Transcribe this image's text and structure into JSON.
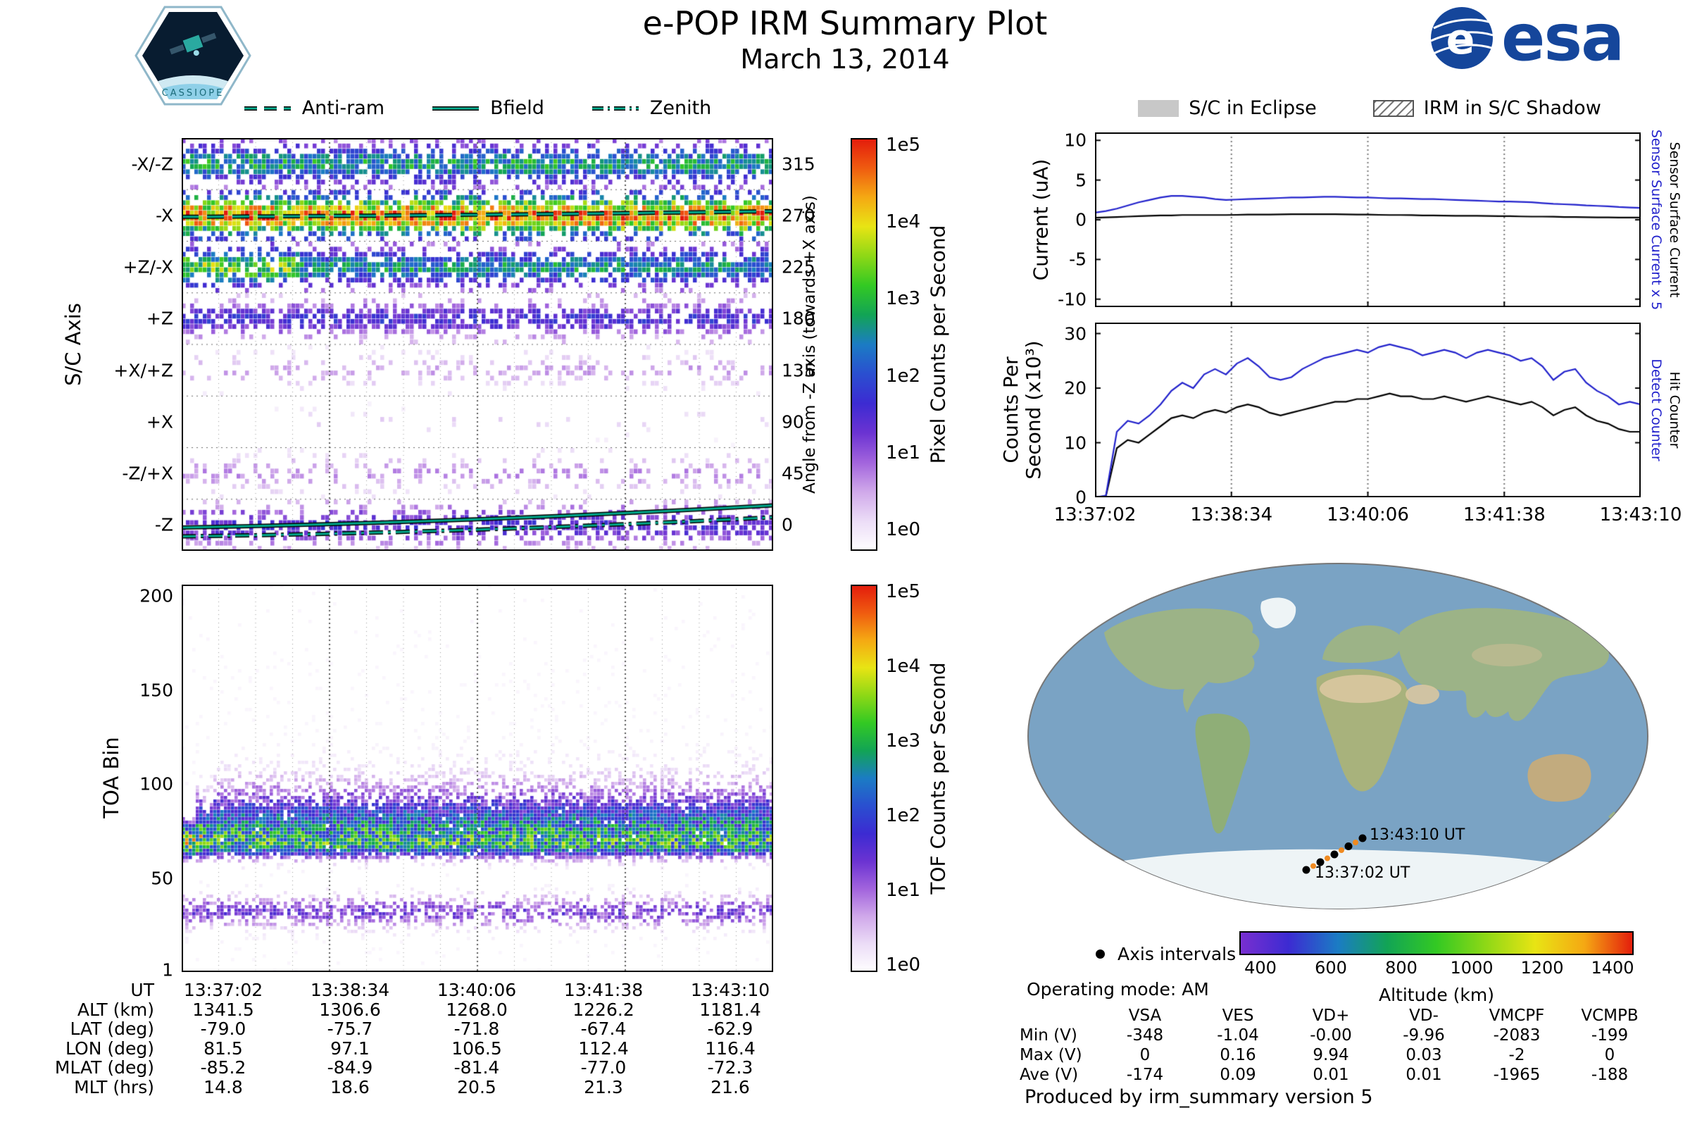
{
  "header": {
    "title": "e-POP IRM Summary Plot",
    "date": "March 13, 2014",
    "esa_text": "esa",
    "cassiope_text": "CASSIOPE"
  },
  "colors": {
    "accent_teal": "#00a98c",
    "series_blue": "#2222cc",
    "series_black": "#000000",
    "eclipse_gray": "#c8c8c8",
    "ocean": "#7aa3c4",
    "land": "#9cb387",
    "desert": "#d9c7a0",
    "ice": "#eef4f6",
    "track_orange": "#f08a20"
  },
  "spectral_colormap": [
    "#ffffff",
    "#ecddf7",
    "#d0a9ea",
    "#a264dd",
    "#6b33d2",
    "#3c2bd2",
    "#2a4fd0",
    "#1b7cc4",
    "#12a455",
    "#33c923",
    "#8ed816",
    "#e8e414",
    "#f5a813",
    "#ef5a10",
    "#e31a0c"
  ],
  "altitude_colormap": [
    "#7a2fd0",
    "#3c2bd2",
    "#1b7cc4",
    "#12a455",
    "#33c923",
    "#8ed816",
    "#e8e414",
    "#f5a813",
    "#e31a0c"
  ],
  "left_legend": {
    "items": [
      {
        "label": "Anti-ram",
        "style": "dashed"
      },
      {
        "label": "Bfield",
        "style": "solid"
      },
      {
        "label": "Zenith",
        "style": "dashdot"
      }
    ]
  },
  "right_legend": {
    "eclipse": "S/C in Eclipse",
    "shadow": "IRM in S/C Shadow"
  },
  "time_axis": {
    "ticks": [
      "13:37:02",
      "13:38:34",
      "13:40:06",
      "13:41:38",
      "13:43:10"
    ]
  },
  "chart_data": [
    {
      "id": "axis_spectrogram",
      "type": "heatmap",
      "ylabel": "S/C Axis",
      "y_categories": [
        "-X/-Z",
        "-X",
        "+Z/-X",
        "+Z",
        "+X/+Z",
        "+X",
        "-Z/+X",
        "-Z"
      ],
      "right_axis_label": "Angle from -Z axis (towards +X axis)",
      "right_ticks": [
        "315",
        "270",
        "225",
        "180",
        "135",
        "90",
        "45",
        "0"
      ],
      "colorbar_label": "Pixel Counts per Second",
      "colorbar_ticks": [
        "1e5",
        "1e4",
        "1e3",
        "1e2",
        "1e1",
        "1e0"
      ],
      "x_ticks": [
        "13:37:02",
        "13:38:34",
        "13:40:06",
        "13:41:38",
        "13:43:10"
      ],
      "bands": [
        {
          "name": "-X/-Z",
          "density": 0.85,
          "peak": 0.52,
          "spread": 0.75
        },
        {
          "name": "-X",
          "density": 1.0,
          "peak": 0.82,
          "spread": 0.85
        },
        {
          "name": "+Z/-X",
          "density": 0.85,
          "peak": 0.5,
          "spread": 0.7,
          "early_boost": 0.14
        },
        {
          "name": "+Z",
          "density": 0.7,
          "peak": 0.33,
          "spread": 0.55
        },
        {
          "name": "+X/+Z",
          "density": 0.25,
          "peak": 0.14,
          "spread": 0.5
        },
        {
          "name": "+X",
          "density": 0.05,
          "peak": 0.08,
          "spread": 0.4
        },
        {
          "name": "-Z/+X",
          "density": 0.3,
          "peak": 0.16,
          "spread": 0.55
        },
        {
          "name": "-Z",
          "density": 0.55,
          "peak": 0.3,
          "spread": 0.8
        }
      ],
      "overlays": [
        {
          "name": "Anti-ram",
          "band": "-X",
          "style": "dashed"
        },
        {
          "name": "Bfield",
          "band": "-Z",
          "style": "solid"
        },
        {
          "name": "Zenith",
          "band": "-Z",
          "style": "dashdot"
        }
      ]
    },
    {
      "id": "toa_spectrogram",
      "type": "heatmap",
      "ylabel": "TOA Bin",
      "y_ticks": [
        200,
        150,
        100,
        50,
        1
      ],
      "ylim": [
        0,
        206
      ],
      "colorbar_label": "TOF Counts per Second",
      "colorbar_ticks": [
        "1e5",
        "1e4",
        "1e3",
        "1e2",
        "1e1",
        "1e0"
      ],
      "x_ticks": [
        "13:37:02",
        "13:38:34",
        "13:40:06",
        "13:41:38",
        "13:43:10"
      ],
      "main_band": {
        "center": 68,
        "spread_down": 7,
        "spread_up": 26,
        "peak": 0.6
      },
      "secondary_band": {
        "center": 32,
        "spread": 8,
        "peak": 0.26
      }
    },
    {
      "id": "current_plot",
      "type": "line",
      "ylabel": "Current (uA)",
      "y_ticks": [
        10,
        5,
        0,
        -5,
        -10
      ],
      "ylim": [
        -11,
        11
      ],
      "right_labels": [
        {
          "text": "Sensor Surface Current x 5",
          "color": "blue"
        },
        {
          "text": "Sensor Surface Current",
          "color": "black"
        }
      ],
      "series": [
        {
          "name": "Sensor Surface Current x 5",
          "color": "#2222cc",
          "values": [
            0.9,
            1.1,
            1.4,
            1.8,
            2.2,
            2.5,
            2.8,
            3.0,
            3.0,
            2.9,
            2.8,
            2.6,
            2.5,
            2.55,
            2.6,
            2.65,
            2.7,
            2.75,
            2.8,
            2.8,
            2.85,
            2.9,
            2.9,
            2.85,
            2.8,
            2.8,
            2.75,
            2.7,
            2.7,
            2.65,
            2.6,
            2.6,
            2.55,
            2.5,
            2.45,
            2.4,
            2.35,
            2.3,
            2.3,
            2.25,
            2.2,
            2.1,
            2.0,
            1.95,
            1.9,
            1.8,
            1.75,
            1.7,
            1.6,
            1.55,
            1.5
          ]
        },
        {
          "name": "Sensor Surface Current",
          "color": "#000000",
          "values": [
            0.25,
            0.3,
            0.35,
            0.4,
            0.45,
            0.5,
            0.55,
            0.55,
            0.6,
            0.6,
            0.6,
            0.6,
            0.6,
            0.62,
            0.65,
            0.65,
            0.65,
            0.68,
            0.7,
            0.7,
            0.7,
            0.7,
            0.7,
            0.68,
            0.65,
            0.65,
            0.62,
            0.6,
            0.6,
            0.58,
            0.55,
            0.55,
            0.52,
            0.5,
            0.5,
            0.5,
            0.48,
            0.45,
            0.45,
            0.42,
            0.4,
            0.4,
            0.38,
            0.35,
            0.35,
            0.33,
            0.3,
            0.3,
            0.28,
            0.28,
            0.27
          ]
        }
      ]
    },
    {
      "id": "counts_plot",
      "type": "line",
      "ylabel": "Counts Per Second (x10³)",
      "y_ticks": [
        30,
        20,
        10,
        0
      ],
      "ylim": [
        0,
        32
      ],
      "x_ticks": [
        "13:37:02",
        "13:38:34",
        "13:40:06",
        "13:41:38",
        "13:43:10"
      ],
      "right_labels": [
        {
          "text": "Detect Counter",
          "color": "blue"
        },
        {
          "text": "Hit Counter",
          "color": "black"
        }
      ],
      "series": [
        {
          "name": "Detect Counter",
          "color": "#2222cc",
          "values": [
            0,
            0.3,
            12.0,
            14.0,
            13.5,
            15.0,
            17.0,
            19.5,
            21.0,
            20.0,
            22.5,
            23.5,
            22.5,
            24.5,
            25.5,
            24.0,
            22.0,
            21.5,
            22.0,
            23.5,
            24.5,
            25.5,
            26.0,
            26.5,
            27.0,
            26.5,
            27.5,
            28.0,
            27.5,
            27.0,
            26.0,
            26.5,
            27.0,
            26.5,
            25.5,
            26.5,
            27.0,
            26.5,
            26.0,
            25.0,
            25.5,
            24.0,
            21.5,
            23.0,
            23.5,
            21.0,
            19.5,
            18.5,
            17.0,
            17.5,
            17.0
          ]
        },
        {
          "name": "Hit Counter",
          "color": "#000000",
          "values": [
            0,
            0.2,
            9.0,
            10.5,
            10.0,
            11.5,
            13.0,
            14.5,
            15.0,
            14.5,
            15.5,
            16.0,
            15.5,
            16.5,
            17.0,
            16.5,
            15.5,
            15.0,
            15.5,
            16.0,
            16.5,
            17.0,
            17.5,
            17.5,
            18.0,
            18.0,
            18.5,
            19.0,
            18.5,
            18.5,
            18.0,
            18.0,
            18.5,
            18.0,
            17.5,
            18.0,
            18.5,
            18.0,
            17.5,
            17.0,
            17.5,
            16.5,
            15.0,
            16.0,
            16.5,
            15.0,
            14.0,
            13.5,
            12.5,
            12.0,
            12.0
          ]
        }
      ]
    },
    {
      "id": "ground_track_map",
      "type": "map",
      "track_start_label": "13:37:02 UT",
      "track_end_label": "13:43:10 UT",
      "legend_label": "Axis intervals",
      "colorbar_label": "Altitude (km)",
      "colorbar_ticks": [
        400,
        600,
        800,
        1000,
        1200,
        1400
      ],
      "colorbar_range": [
        340,
        1460
      ]
    }
  ],
  "ephemeris_table": {
    "row_labels": [
      "UT",
      "ALT (km)",
      "LAT (deg)",
      "LON (deg)",
      "MLAT (deg)",
      "MLT (hrs)"
    ],
    "rows": [
      [
        "13:37:02",
        "13:38:34",
        "13:40:06",
        "13:41:38",
        "13:43:10"
      ],
      [
        "1341.5",
        "1306.6",
        "1268.0",
        "1226.2",
        "1181.4"
      ],
      [
        "-79.0",
        "-75.7",
        "-71.8",
        "-67.4",
        "-62.9"
      ],
      [
        "81.5",
        "97.1",
        "106.5",
        "112.4",
        "116.4"
      ],
      [
        "-85.2",
        "-84.9",
        "-81.4",
        "-77.0",
        "-72.3"
      ],
      [
        "14.8",
        "18.6",
        "20.5",
        "21.3",
        "21.6"
      ]
    ]
  },
  "voltage_table": {
    "columns": [
      "VSA",
      "VES",
      "VD+",
      "VD-",
      "VMCPF",
      "VCMPB"
    ],
    "rows": [
      {
        "label": "Min (V)",
        "values": [
          "-348",
          "-1.04",
          "-0.00",
          "-9.96",
          "-2083",
          "-199"
        ]
      },
      {
        "label": "Max (V)",
        "values": [
          "0",
          "0.16",
          "9.94",
          "0.03",
          "-2",
          "0"
        ]
      },
      {
        "label": "Ave (V)",
        "values": [
          "-174",
          "0.09",
          "0.01",
          "0.01",
          "-1965",
          "-188"
        ]
      }
    ]
  },
  "status": {
    "operating_mode": "Operating mode: AM",
    "produced_by": "Produced by irm_summary version 5"
  }
}
